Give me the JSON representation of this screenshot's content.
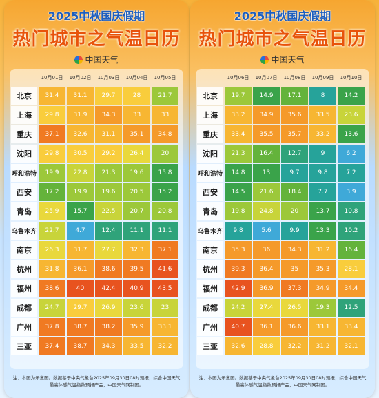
{
  "title_line1": "2025中秋国庆假期",
  "title_line2": "热门城市之气温日历",
  "logo_text": "中国天气",
  "cities": [
    "北京",
    "上海",
    "重庆",
    "沈阳",
    "呼和浩特",
    "西安",
    "青岛",
    "乌鲁木齐",
    "南京",
    "杭州",
    "福州",
    "成都",
    "广州",
    "三亚"
  ],
  "panel1": {
    "dates": [
      "10月01日",
      "10月02日",
      "10月03日",
      "10月04日",
      "10月05日"
    ],
    "values": [
      [
        31.4,
        31.1,
        29.7,
        28,
        21.7
      ],
      [
        29.8,
        31.9,
        34.3,
        33,
        33
      ],
      [
        37.1,
        32.6,
        31.1,
        35.1,
        34.8
      ],
      [
        29.8,
        30.5,
        29.2,
        26.4,
        20
      ],
      [
        19.9,
        22.8,
        21.3,
        19.6,
        15.8
      ],
      [
        17.2,
        19.9,
        19.6,
        20.5,
        15.2
      ],
      [
        25.9,
        15.7,
        22.5,
        20.7,
        20.8
      ],
      [
        22.7,
        4.7,
        12.4,
        11.1,
        11.1
      ],
      [
        26.3,
        31.7,
        27.7,
        32.3,
        37.1
      ],
      [
        31.8,
        36.1,
        38.6,
        39.5,
        41.6
      ],
      [
        38.6,
        40,
        42.4,
        40.9,
        43.5
      ],
      [
        24.7,
        29.7,
        26.9,
        23.6,
        23
      ],
      [
        37.8,
        38.7,
        38.2,
        35.9,
        33.1
      ],
      [
        37.4,
        38.7,
        34.3,
        33.5,
        32.2
      ]
    ],
    "note": "注：本图为示意图。数据基于中央气象台2025年09月30日08时预报，综合中国天气最高体感气温指数预报产品，中国天气网制图。"
  },
  "panel2": {
    "dates": [
      "10月06日",
      "10月07日",
      "10月08日",
      "10月09日",
      "10月10日"
    ],
    "values": [
      [
        19.7,
        14.9,
        17.1,
        8,
        14.2
      ],
      [
        33.2,
        34.9,
        35.6,
        33.5,
        23.6
      ],
      [
        33.4,
        35.5,
        35.7,
        33.2,
        13.6
      ],
      [
        21.3,
        16.4,
        12.7,
        9,
        6.2
      ],
      [
        14.8,
        13,
        9.7,
        9.8,
        7.2
      ],
      [
        14.5,
        21.6,
        18.4,
        7.7,
        3.9
      ],
      [
        19.8,
        24.8,
        20,
        13.7,
        10.8
      ],
      [
        9.8,
        5.6,
        9.9,
        13.3,
        10.2
      ],
      [
        35.3,
        36,
        34.3,
        31.2,
        16.4
      ],
      [
        39.3,
        36.4,
        35,
        35.3,
        28.1
      ],
      [
        42.9,
        36.9,
        37.3,
        34.9,
        34.4
      ],
      [
        24.2,
        27.4,
        26.5,
        19.3,
        12.5
      ],
      [
        40.7,
        36.1,
        36.6,
        33.1,
        33.4
      ],
      [
        32.6,
        28.8,
        32.2,
        31.2,
        32.1
      ]
    ],
    "note": "注：本图为示意图。数据基于中央气象台2025年09月30日08时预报，综合中国天气最高体感气温指数预报产品，中国天气网制图。"
  }
}
